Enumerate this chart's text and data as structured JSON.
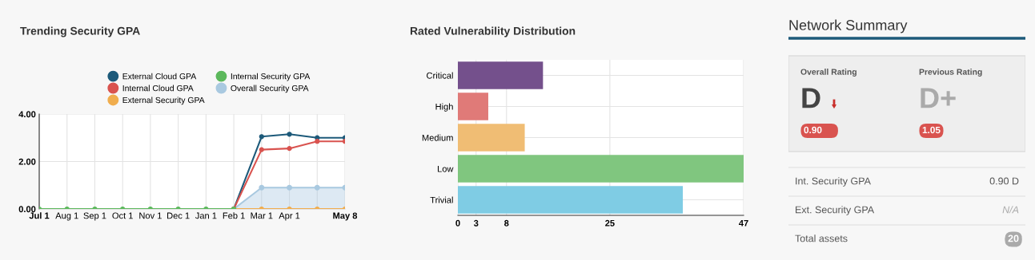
{
  "chart_data": [
    {
      "type": "line",
      "title": "Trending Security GPA",
      "categories": [
        "Jul 1",
        "Aug 1",
        "Sep 1",
        "Oct 1",
        "Nov 1",
        "Dec 1",
        "Jan 1",
        "Feb 1",
        "Mar 1",
        "Apr 1",
        null,
        "May 8"
      ],
      "series": [
        {
          "name": "External Cloud GPA",
          "color": "#1d5a7a",
          "values": [
            null,
            null,
            null,
            null,
            null,
            null,
            null,
            0,
            3.05,
            3.15,
            3.0,
            3.0
          ]
        },
        {
          "name": "Internal Cloud GPA",
          "color": "#d9534f",
          "values": [
            null,
            null,
            null,
            null,
            null,
            null,
            null,
            0,
            2.5,
            2.55,
            2.85,
            2.85
          ]
        },
        {
          "name": "External Security GPA",
          "color": "#f0ad4e",
          "values": [
            null,
            null,
            null,
            null,
            null,
            null,
            null,
            0,
            0,
            0,
            0,
            0
          ]
        },
        {
          "name": "Internal Security GPA",
          "color": "#5cb85c",
          "values": [
            0,
            0,
            0,
            0,
            0,
            0,
            0,
            0,
            null,
            null,
            null,
            null
          ]
        },
        {
          "name": "Overall Security GPA",
          "type": "area",
          "color": "#a9c9e0",
          "values": [
            null,
            null,
            null,
            null,
            null,
            null,
            null,
            0,
            0.9,
            0.9,
            0.9,
            0.9
          ]
        }
      ],
      "ylim": [
        0,
        4
      ],
      "yticks": [
        {
          "value": 0,
          "label": "0.00"
        },
        {
          "value": 2,
          "label": "2.00"
        },
        {
          "value": 4,
          "label": "4.00"
        }
      ],
      "grid": true,
      "legend": "top",
      "marker": "circle",
      "line_style": "solid"
    },
    {
      "type": "bar",
      "title": "Rated Vulnerability Distribution",
      "orientation": "horizontal",
      "categories": [
        "Critical",
        "High",
        "Medium",
        "Low",
        "Trivial"
      ],
      "values": [
        14,
        5,
        11,
        47,
        37
      ],
      "colors": [
        "#74508c",
        "#e07a78",
        "#f0bd74",
        "#80c67f",
        "#7fcce4"
      ],
      "xlim": [
        0,
        47
      ],
      "xticks": [
        0,
        3,
        8,
        25,
        47
      ],
      "grid": true
    },
    {
      "type": "other",
      "title": "Network Summary",
      "annotations": [
        "Overall Rating",
        "D",
        "0.90",
        "Previous Rating",
        "D+",
        "1.05",
        "Int. Security GPA",
        "0.90 D",
        "Ext. Security GPA",
        "N/A",
        "Total assets",
        "20"
      ]
    }
  ]
}
